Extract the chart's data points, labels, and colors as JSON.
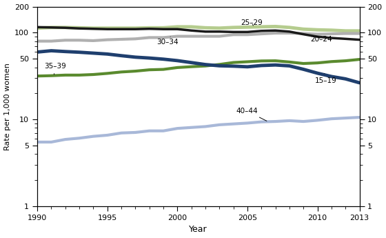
{
  "years": [
    1990,
    1991,
    1992,
    1993,
    1994,
    1995,
    1996,
    1997,
    1998,
    1999,
    2000,
    2001,
    2002,
    2003,
    2004,
    2005,
    2006,
    2007,
    2008,
    2009,
    2010,
    2011,
    2012,
    2013
  ],
  "age_groups": {
    "25–29": {
      "color": "#b5cc8e",
      "linewidth": 3.5,
      "data": [
        113,
        115,
        115,
        114,
        113,
        113,
        113,
        113,
        114,
        114,
        117,
        117,
        114,
        113,
        115,
        116,
        117,
        118,
        115,
        110,
        108,
        107,
        105,
        105
      ]
    },
    "20–24": {
      "color": "#1a1a1a",
      "linewidth": 2.5,
      "data": [
        116,
        115,
        114,
        112,
        111,
        110,
        110,
        110,
        111,
        110,
        110,
        106,
        103,
        103,
        102,
        102,
        105,
        106,
        103,
        96,
        90,
        87,
        85,
        83
      ]
    },
    "30–34": {
      "color": "#b0b0b0",
      "linewidth": 3.0,
      "data": [
        80,
        80,
        82,
        82,
        81,
        83,
        84,
        85,
        88,
        88,
        91,
        91,
        91,
        91,
        95,
        95,
        97,
        99,
        99,
        98,
        96,
        97,
        98,
        98
      ]
    },
    "15–19": {
      "color": "#1f3f6e",
      "linewidth": 3.5,
      "data": [
        59.9,
        62,
        60.7,
        59.6,
        58.2,
        56.8,
        54.4,
        52.3,
        51.1,
        49.6,
        47.7,
        45.3,
        43,
        41.6,
        41.2,
        40.5,
        41.9,
        42.5,
        41.5,
        37.9,
        34.2,
        31.3,
        29.4,
        26.5
      ]
    },
    "35–39": {
      "color": "#5a8a2e",
      "linewidth": 3.0,
      "data": [
        31.7,
        32.0,
        32.5,
        32.5,
        33.0,
        34.0,
        35.3,
        36.1,
        37.4,
        37.8,
        39.7,
        40.6,
        41.4,
        43.1,
        45.4,
        46.3,
        47.3,
        47.5,
        46.0,
        44.2,
        44.9,
        46.5,
        47.5,
        49.3
      ]
    },
    "40–44": {
      "color": "#a8b8d8",
      "linewidth": 3.0,
      "data": [
        5.5,
        5.5,
        5.9,
        6.1,
        6.4,
        6.6,
        7.0,
        7.1,
        7.4,
        7.4,
        7.9,
        8.1,
        8.3,
        8.7,
        8.9,
        9.1,
        9.4,
        9.5,
        9.7,
        9.5,
        9.8,
        10.2,
        10.4,
        10.6
      ]
    }
  },
  "xlabel": "Year",
  "ylabel": "Rate per 1,000 women",
  "ylim": [
    1,
    200
  ],
  "yticks_major": [
    1,
    5,
    10,
    50,
    100,
    200
  ],
  "xticks": [
    1990,
    1995,
    2000,
    2005,
    2010,
    2013
  ],
  "annotations": {
    "25–29": {
      "xy_x": 2005.5,
      "xy_y": 116,
      "txt_x": 2004.5,
      "txt_y": 130,
      "ha": "left"
    },
    "20–24": {
      "xy_x": 2010.0,
      "xy_y": 90,
      "txt_x": 2009.5,
      "txt_y": 84,
      "ha": "left"
    },
    "30–34": {
      "xy_x": 1999.5,
      "xy_y": 90,
      "txt_x": 1998.5,
      "txt_y": 78,
      "ha": "left"
    },
    "15–19": {
      "xy_x": 2010.5,
      "xy_y": 34,
      "txt_x": 2009.8,
      "txt_y": 28,
      "ha": "left"
    },
    "35–39": {
      "xy_x": 1991.2,
      "xy_y": 33,
      "txt_x": 1990.5,
      "txt_y": 41,
      "ha": "left"
    },
    "40–44": {
      "xy_x": 2006.5,
      "xy_y": 9.4,
      "txt_x": 2004.2,
      "txt_y": 12.5,
      "ha": "left"
    }
  }
}
